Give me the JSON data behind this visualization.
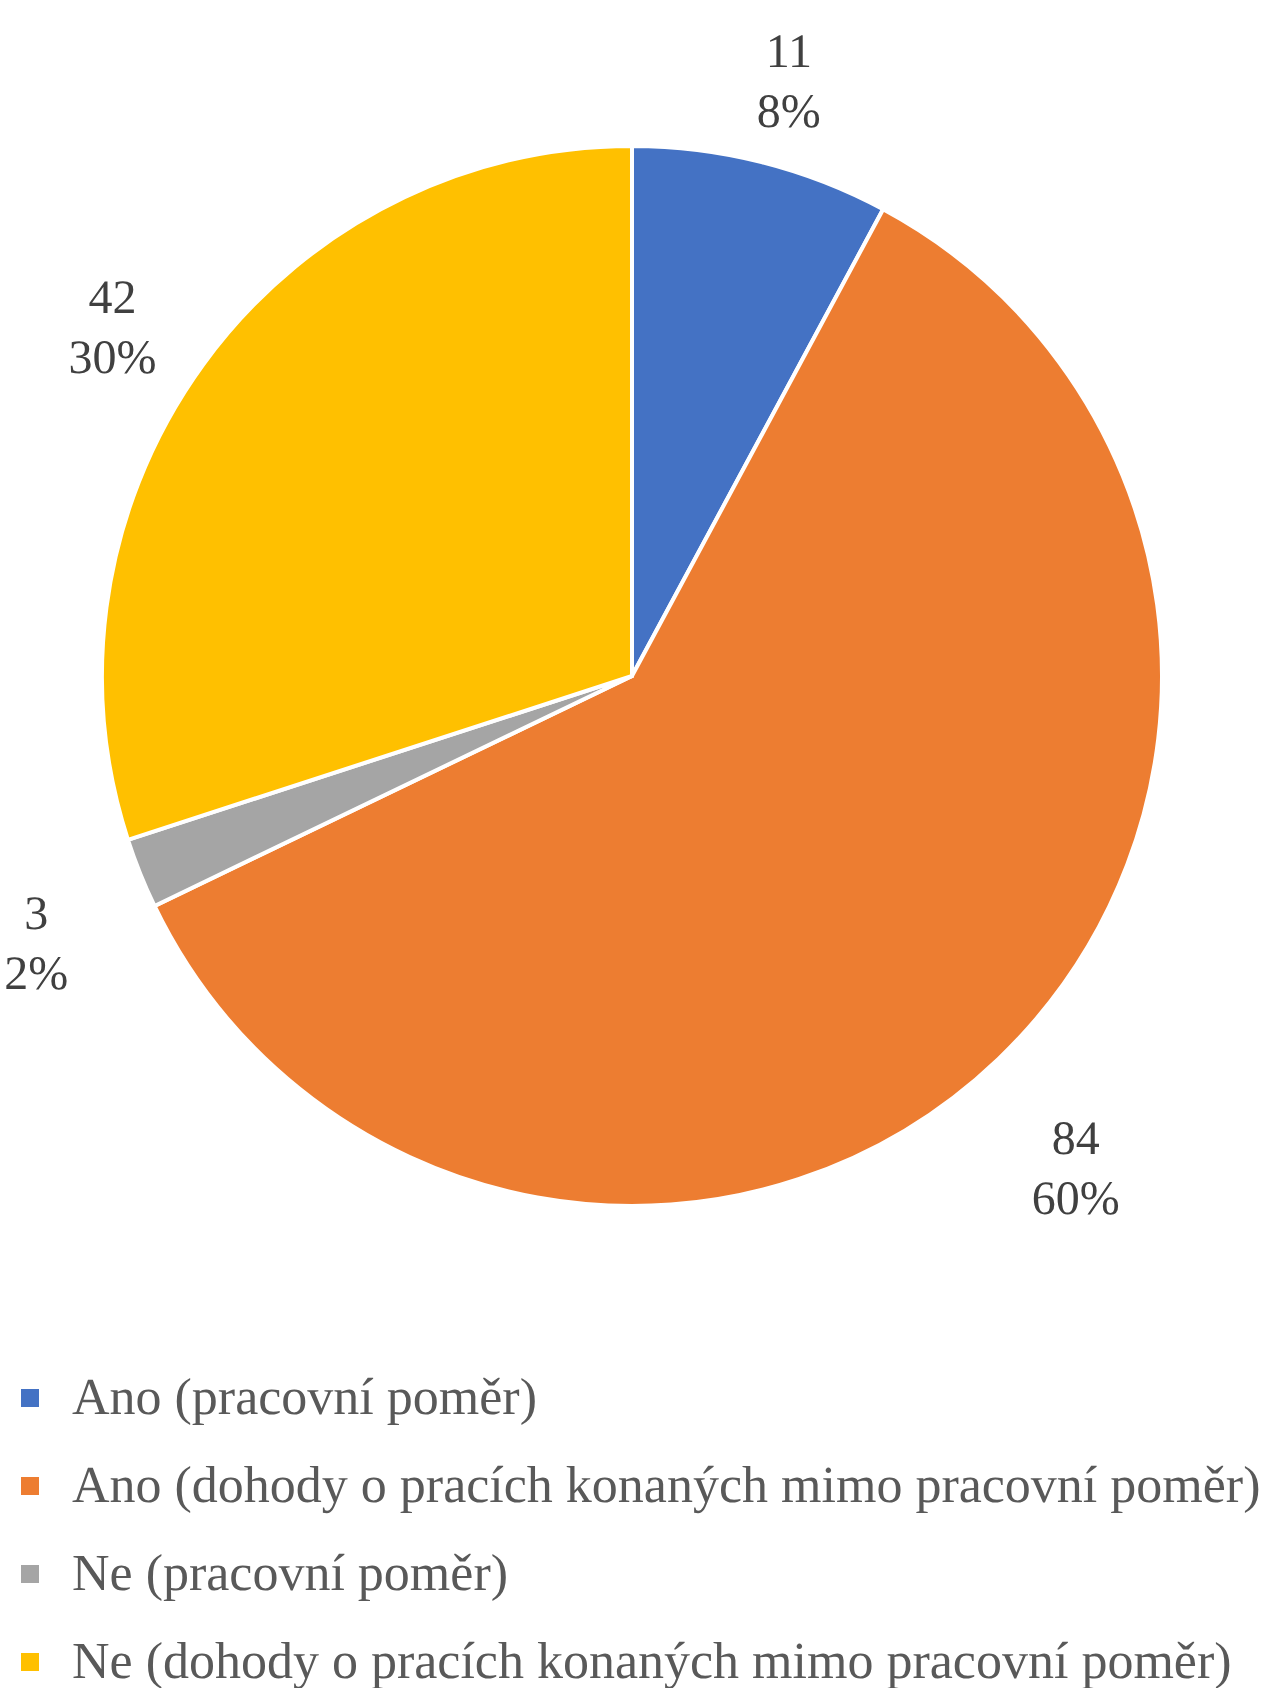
{
  "chart_data": {
    "type": "pie",
    "categories": [
      "Ano (pracovní poměr)",
      "Ano (dohody o pracích konaných mimo pracovní poměr)",
      "Ne (pracovní poměr)",
      "Ne (dohody o pracích konaných mimo pracovní poměr)"
    ],
    "values": [
      11,
      84,
      3,
      42
    ],
    "colors": [
      "#4472c4",
      "#ed7d31",
      "#a5a5a5",
      "#ffc000"
    ],
    "value_labels": [
      "11\n8%",
      "84\n60%",
      "3\n2%",
      "42\n30%"
    ],
    "legend": "bottom"
  }
}
